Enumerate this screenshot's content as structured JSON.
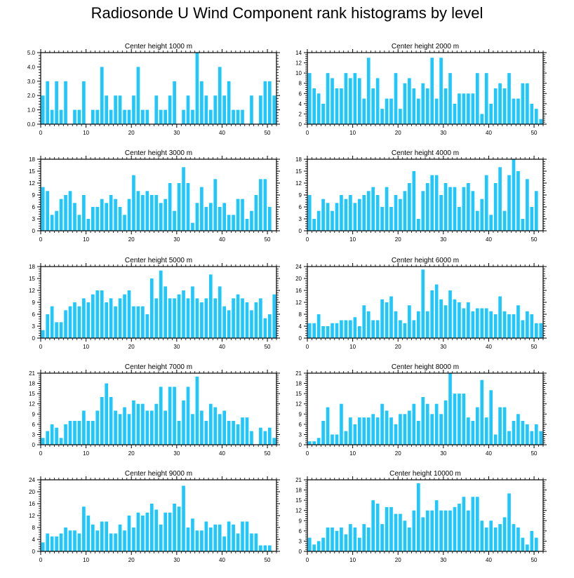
{
  "page": {
    "title": "Radiosonde U Wind Component rank histograms by level"
  },
  "bar_color": "#1EC8FF",
  "chart_data": [
    {
      "type": "bar",
      "title": "Center height 1000 m",
      "ylim": [
        0,
        5
      ],
      "yticks": [
        0,
        1,
        2,
        3,
        4,
        5
      ],
      "ytick_labels": [
        "0.0",
        "1.0",
        "2.0",
        "3.0",
        "4.0",
        "5.0"
      ],
      "xlim": [
        0,
        52
      ],
      "xticks": [
        0,
        10,
        20,
        30,
        40,
        50
      ],
      "values": [
        2,
        3,
        1,
        3,
        1,
        3,
        0,
        1,
        1,
        3,
        0,
        1,
        1,
        4,
        2,
        1,
        2,
        2,
        1,
        1,
        2,
        4,
        1,
        1,
        0,
        2,
        1,
        1,
        2,
        3,
        0,
        1,
        2,
        1,
        5,
        3,
        2,
        1,
        2,
        4,
        2,
        3,
        1,
        1,
        1,
        0,
        2,
        0,
        2,
        3,
        3,
        2
      ]
    },
    {
      "type": "bar",
      "title": "Center height 2000 m",
      "ylim": [
        0,
        14
      ],
      "yticks": [
        0,
        2,
        4,
        6,
        8,
        10,
        12,
        14
      ],
      "ytick_labels": [
        "0",
        "2",
        "4",
        "6",
        "8",
        "10",
        "12",
        "14"
      ],
      "xlim": [
        0,
        52
      ],
      "xticks": [
        0,
        10,
        20,
        30,
        40,
        50
      ],
      "values": [
        10,
        7,
        6,
        4,
        10,
        9,
        7,
        7,
        10,
        9,
        10,
        9,
        5,
        13,
        7,
        9,
        3,
        5,
        5,
        10,
        3,
        8,
        9,
        7,
        5,
        8,
        7,
        13,
        5,
        13,
        7,
        10,
        4,
        6,
        6,
        6,
        6,
        10,
        2,
        10,
        4,
        7,
        8,
        7,
        10,
        5,
        5,
        8,
        8,
        4,
        3,
        1
      ]
    },
    {
      "type": "bar",
      "title": "Center height 3000 m",
      "ylim": [
        0,
        18
      ],
      "yticks": [
        0,
        3,
        6,
        9,
        12,
        15,
        18
      ],
      "ytick_labels": [
        "0",
        "3",
        "6",
        "9",
        "12",
        "15",
        "18"
      ],
      "xlim": [
        0,
        52
      ],
      "xticks": [
        0,
        10,
        20,
        30,
        40,
        50
      ],
      "values": [
        11,
        10,
        4,
        5,
        8,
        9,
        10,
        7,
        4,
        9,
        3,
        6,
        6,
        8,
        7,
        9,
        8,
        6,
        4,
        8,
        14,
        10,
        9,
        10,
        9,
        9,
        7,
        8,
        12,
        5,
        12,
        16,
        12,
        2,
        7,
        11,
        6,
        7,
        13,
        6,
        7,
        4,
        4,
        8,
        8,
        3,
        5,
        9,
        13,
        13,
        6,
        0
      ]
    },
    {
      "type": "bar",
      "title": "Center height 4000 m",
      "ylim": [
        0,
        18
      ],
      "yticks": [
        0,
        3,
        6,
        9,
        12,
        15,
        18
      ],
      "ytick_labels": [
        "0",
        "3",
        "6",
        "9",
        "12",
        "15",
        "18"
      ],
      "xlim": [
        0,
        52
      ],
      "xticks": [
        0,
        10,
        20,
        30,
        40,
        50
      ],
      "values": [
        9,
        3,
        5,
        8,
        7,
        5,
        7,
        9,
        8,
        9,
        7,
        8,
        9,
        10,
        11,
        9,
        6,
        11,
        6,
        9,
        8,
        10,
        12,
        15,
        3,
        10,
        12,
        14,
        14,
        9,
        12,
        11,
        11,
        6,
        11,
        12,
        10,
        5,
        8,
        14,
        4,
        12,
        16,
        5,
        14,
        18,
        15,
        3,
        13,
        6,
        10,
        0
      ]
    },
    {
      "type": "bar",
      "title": "Center height 5000 m",
      "ylim": [
        0,
        18
      ],
      "yticks": [
        0,
        3,
        6,
        9,
        12,
        15,
        18
      ],
      "ytick_labels": [
        "0",
        "3",
        "6",
        "9",
        "12",
        "15",
        "18"
      ],
      "xlim": [
        0,
        52
      ],
      "xticks": [
        0,
        10,
        20,
        30,
        40,
        50
      ],
      "values": [
        2,
        6,
        8,
        4,
        4,
        7,
        8,
        9,
        8,
        10,
        9,
        11,
        12,
        12,
        9,
        10,
        8,
        10,
        11,
        12,
        8,
        8,
        8,
        6,
        15,
        10,
        17,
        13,
        10,
        10,
        11,
        12,
        10,
        13,
        10,
        9,
        10,
        16,
        10,
        13,
        8,
        7,
        10,
        11,
        10,
        9,
        7,
        9,
        10,
        5,
        6,
        11
      ]
    },
    {
      "type": "bar",
      "title": "Center height 6000 m",
      "ylim": [
        0,
        24
      ],
      "yticks": [
        0,
        4,
        8,
        12,
        16,
        20,
        24
      ],
      "ytick_labels": [
        "0",
        "4",
        "8",
        "12",
        "16",
        "20",
        "24"
      ],
      "xlim": [
        0,
        52
      ],
      "xticks": [
        0,
        10,
        20,
        30,
        40,
        50
      ],
      "values": [
        5,
        5,
        8,
        4,
        4,
        5,
        5,
        6,
        6,
        6,
        7,
        4,
        11,
        9,
        6,
        6,
        13,
        12,
        14,
        9,
        6,
        5,
        11,
        6,
        9,
        23,
        9,
        16,
        18,
        13,
        11,
        16,
        13,
        12,
        10,
        12,
        9,
        10,
        10,
        10,
        9,
        8,
        14,
        9,
        8,
        8,
        11,
        6,
        9,
        8,
        5,
        5
      ]
    },
    {
      "type": "bar",
      "title": "Center height 7000 m",
      "ylim": [
        0,
        21
      ],
      "yticks": [
        0,
        3,
        6,
        9,
        12,
        15,
        18,
        21
      ],
      "ytick_labels": [
        "0",
        "3",
        "6",
        "9",
        "12",
        "15",
        "18",
        "21"
      ],
      "xlim": [
        0,
        52
      ],
      "xticks": [
        0,
        10,
        20,
        30,
        40,
        50
      ],
      "values": [
        2,
        4,
        6,
        5,
        2,
        6,
        7,
        7,
        7,
        10,
        7,
        7,
        10,
        14,
        18,
        14,
        10,
        9,
        11,
        9,
        13,
        12,
        12,
        10,
        10,
        12,
        17,
        10,
        17,
        17,
        7,
        13,
        17,
        9,
        20,
        10,
        7,
        12,
        11,
        9,
        10,
        7,
        7,
        6,
        8,
        8,
        4,
        0,
        5,
        4,
        5,
        2
      ]
    },
    {
      "type": "bar",
      "title": "Center height 8000 m",
      "ylim": [
        0,
        21
      ],
      "yticks": [
        0,
        3,
        6,
        9,
        12,
        15,
        18,
        21
      ],
      "ytick_labels": [
        "0",
        "3",
        "6",
        "9",
        "12",
        "15",
        "18",
        "21"
      ],
      "xlim": [
        0,
        52
      ],
      "xticks": [
        0,
        10,
        20,
        30,
        40,
        50
      ],
      "values": [
        1,
        1,
        2,
        7,
        11,
        3,
        3,
        12,
        4,
        8,
        6,
        8,
        8,
        8,
        9,
        8,
        12,
        10,
        8,
        6,
        9,
        9,
        10,
        12,
        7,
        14,
        12,
        9,
        12,
        9,
        13,
        21,
        15,
        15,
        15,
        8,
        7,
        11,
        19,
        8,
        16,
        3,
        11,
        11,
        4,
        7,
        9,
        7,
        6,
        4,
        6,
        4
      ]
    },
    {
      "type": "bar",
      "title": "Center height 9000 m",
      "ylim": [
        0,
        24
      ],
      "yticks": [
        0,
        4,
        8,
        12,
        16,
        20,
        24
      ],
      "ytick_labels": [
        "0",
        "4",
        "8",
        "12",
        "16",
        "20",
        "24"
      ],
      "xlim": [
        0,
        52
      ],
      "xticks": [
        0,
        10,
        20,
        30,
        40,
        50
      ],
      "values": [
        3,
        6,
        5,
        5,
        6,
        8,
        7,
        7,
        6,
        15,
        12,
        9,
        7,
        10,
        10,
        6,
        6,
        9,
        7,
        12,
        8,
        13,
        12,
        13,
        16,
        14,
        9,
        13,
        13,
        16,
        15,
        22,
        8,
        11,
        7,
        7,
        10,
        8,
        9,
        9,
        5,
        10,
        9,
        6,
        10,
        10,
        6,
        6,
        2,
        2,
        2,
        0
      ]
    },
    {
      "type": "bar",
      "title": "Center height 10000 m",
      "ylim": [
        0,
        21
      ],
      "yticks": [
        0,
        3,
        6,
        9,
        12,
        15,
        18,
        21
      ],
      "ytick_labels": [
        "0",
        "3",
        "6",
        "9",
        "12",
        "15",
        "18",
        "21"
      ],
      "xlim": [
        0,
        52
      ],
      "xticks": [
        0,
        10,
        20,
        30,
        40,
        50
      ],
      "values": [
        4,
        2,
        3,
        4,
        7,
        7,
        6,
        7,
        5,
        8,
        7,
        4,
        8,
        7,
        15,
        14,
        8,
        13,
        13,
        11,
        11,
        9,
        7,
        12,
        20,
        10,
        12,
        12,
        15,
        12,
        12,
        12,
        13,
        14,
        16,
        12,
        16,
        16,
        9,
        7,
        9,
        7,
        8,
        10,
        17,
        8,
        7,
        4,
        2,
        6,
        4,
        0
      ]
    }
  ]
}
